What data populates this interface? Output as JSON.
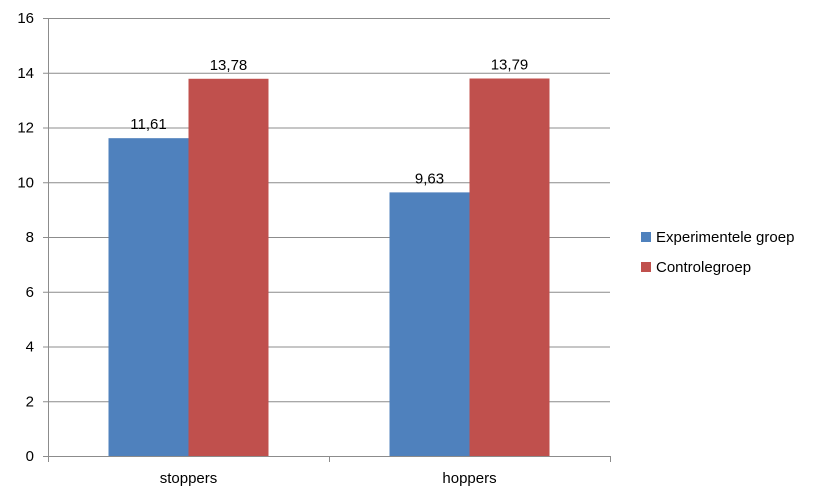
{
  "chart_data": {
    "type": "bar",
    "categories": [
      "stoppers",
      "hoppers"
    ],
    "series": [
      {
        "name": "Experimentele groep",
        "values": [
          11.61,
          9.63
        ],
        "labels": [
          "11,61",
          "9,63"
        ],
        "color": "#4F81BD"
      },
      {
        "name": "Controlegroep",
        "values": [
          13.78,
          13.79
        ],
        "labels": [
          "13,78",
          "13,79"
        ],
        "color": "#C0504D"
      }
    ],
    "ylim": [
      0,
      16
    ],
    "yticks": [
      0,
      2,
      4,
      6,
      8,
      10,
      12,
      14,
      16
    ],
    "grid": true,
    "legend_position": "right"
  }
}
